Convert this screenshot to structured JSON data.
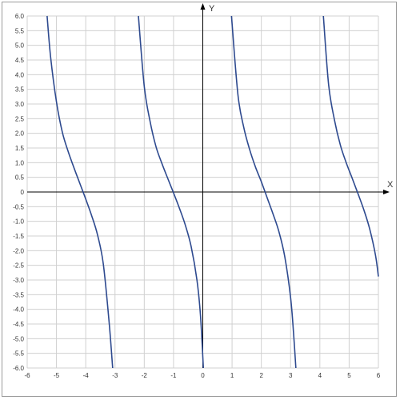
{
  "chart_data": {
    "type": "line",
    "title": "",
    "xlabel": "X",
    "ylabel": "Y",
    "xlim": [
      -6,
      6
    ],
    "ylim": [
      -6,
      6
    ],
    "grid": true,
    "x_ticks": [
      "-6",
      "-5",
      "-4",
      "-3",
      "-2",
      "-1",
      "0",
      "1",
      "2",
      "3",
      "4",
      "5",
      "6"
    ],
    "y_ticks": [
      "6.0",
      "5.5",
      "5.0",
      "4.5",
      "4.0",
      "3.5",
      "3.0",
      "2.5",
      "2.0",
      "1.5",
      "1.0",
      "0.5",
      "0",
      "-0.5",
      "-1.0",
      "-1.5",
      "-2.0",
      "-2.5",
      "-3.0",
      "-3.5",
      "-4.0",
      "-4.5",
      "-5.0",
      "-5.5",
      "-6.0"
    ],
    "series": [
      {
        "color": "#2e4a8f",
        "branches": [
          {
            "x": [
              -5.32,
              -5.2,
              -5.0,
              -4.8,
              -4.6,
              -4.4,
              -4.2,
              -4.0,
              -3.8,
              -3.6,
              -3.4,
              -3.2,
              -3.08
            ],
            "y": [
              6.0,
              4.6,
              3.07,
              2.04,
              1.38,
              0.82,
              0.29,
              -0.24,
              -0.8,
              -1.45,
              -2.45,
              -4.45,
              -6.0
            ]
          },
          {
            "x": [
              -2.2,
              -2.0,
              -1.8,
              -1.6,
              -1.4,
              -1.2,
              -1.0,
              -0.8,
              -0.6,
              -0.4,
              -0.2,
              -0.08,
              0.02
            ],
            "y": [
              6.0,
              3.6,
              2.4,
              1.55,
              0.98,
              0.47,
              -0.03,
              -0.55,
              -1.12,
              -1.85,
              -3.0,
              -4.2,
              -6.0
            ]
          },
          {
            "x": [
              0.98,
              1.2,
              1.4,
              1.6,
              1.8,
              2.0,
              2.2,
              2.4,
              2.6,
              2.8,
              3.0,
              3.1,
              3.18
            ],
            "y": [
              6.0,
              3.32,
              2.2,
              1.45,
              0.85,
              0.35,
              -0.2,
              -0.75,
              -1.35,
              -2.2,
              -3.6,
              -4.8,
              -6.0
            ]
          },
          {
            "x": [
              4.12,
              4.3,
              4.5,
              4.7,
              4.9,
              5.1,
              5.3,
              5.5,
              5.7,
              5.9,
              6.0
            ],
            "y": [
              6.0,
              3.65,
              2.45,
              1.6,
              1.0,
              0.48,
              -0.05,
              -0.6,
              -1.25,
              -2.15,
              -2.88
            ]
          }
        ]
      }
    ]
  }
}
